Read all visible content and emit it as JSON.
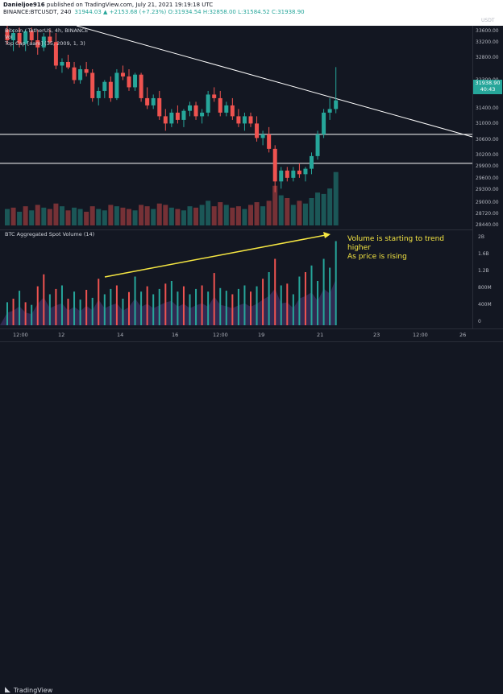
{
  "header": {
    "line1_user": "Danieljoe916",
    "line1_rest": "published on TradingView.com, July 21, 2021 19:19:18 UTC",
    "symbol": "BINANCE:BTCUSDT, 240",
    "ohlc": "31944.03 ▲ +2153.68 (+7.23%) O:31934.54 H:32858.00 L:31584.52 C:31938.90"
  },
  "legend": {
    "line1": "Bitcoin / TetherUS, 4h, BINANCE",
    "line2": "Vol",
    "line3": "Top Cap [aam] (35, 2009, 1, 3)"
  },
  "indicator": {
    "legend": "BTC Aggregated Spot Volume (14)"
  },
  "annotation": {
    "line1": "Volume is starting to trend higher",
    "line2": "As price is rising"
  },
  "price_axis": {
    "currency": "USDT",
    "ticks": [
      "33600.00",
      "33200.00",
      "32800.00",
      "32300.00",
      "31938.90",
      "31400.00",
      "31000.00",
      "30600.00",
      "30200.00",
      "29900.00",
      "29600.00",
      "29300.00",
      "29000.00",
      "28720.00",
      "28440.00"
    ],
    "badge_price": "31938.90",
    "badge_time": "40:43"
  },
  "indicator_axis": {
    "ticks": [
      "2B",
      "1.6B",
      "1.2B",
      "800M",
      "400M",
      "0"
    ]
  },
  "time_axis": {
    "ticks": [
      "12:00",
      "12",
      "14",
      "16",
      "12:00",
      "19",
      "21",
      "23",
      "12:00",
      "26"
    ]
  },
  "footer": {
    "brand": "TradingView"
  },
  "colors": {
    "bull": "#26a69a",
    "bear": "#ef5350",
    "annotation": "#f5e642",
    "trendline": "#ffffff",
    "background": "#131722"
  },
  "chart_data": {
    "type": "candlestick",
    "candles": [
      [
        33900,
        34000,
        33500,
        33600
      ],
      [
        33600,
        33900,
        33300,
        33800
      ],
      [
        33800,
        33950,
        33400,
        33500
      ],
      [
        33500,
        33900,
        33300,
        33850
      ],
      [
        33850,
        33950,
        33500,
        33600
      ],
      [
        33600,
        33900,
        33200,
        33400
      ],
      [
        33400,
        33800,
        33300,
        33700
      ],
      [
        33700,
        33900,
        33500,
        33550
      ],
      [
        33550,
        33800,
        32800,
        32900
      ],
      [
        32900,
        33100,
        32700,
        33000
      ],
      [
        33000,
        33200,
        32800,
        32850
      ],
      [
        32850,
        33000,
        32400,
        32500
      ],
      [
        32500,
        32900,
        32400,
        32800
      ],
      [
        32800,
        33000,
        32600,
        32700
      ],
      [
        32700,
        32800,
        31900,
        32000
      ],
      [
        32000,
        32300,
        31800,
        32200
      ],
      [
        32200,
        32500,
        32000,
        32450
      ],
      [
        32450,
        32600,
        31900,
        32000
      ],
      [
        32000,
        32800,
        31950,
        32700
      ],
      [
        32700,
        32900,
        32500,
        32600
      ],
      [
        32600,
        32800,
        32200,
        32300
      ],
      [
        32300,
        32700,
        32200,
        32650
      ],
      [
        32650,
        32700,
        31900,
        32000
      ],
      [
        32000,
        32300,
        31700,
        31800
      ],
      [
        31800,
        32100,
        31700,
        32000
      ],
      [
        32000,
        32200,
        31400,
        31500
      ],
      [
        31500,
        31700,
        31100,
        31300
      ],
      [
        31300,
        31700,
        31200,
        31600
      ],
      [
        31600,
        31800,
        31300,
        31400
      ],
      [
        31400,
        31700,
        31200,
        31650
      ],
      [
        31650,
        31900,
        31500,
        31800
      ],
      [
        31800,
        31900,
        31400,
        31500
      ],
      [
        31500,
        31700,
        31300,
        31600
      ],
      [
        31600,
        32200,
        31500,
        32100
      ],
      [
        32100,
        32300,
        31900,
        32000
      ],
      [
        32000,
        32200,
        31500,
        31600
      ],
      [
        31600,
        31900,
        31500,
        31800
      ],
      [
        31800,
        32000,
        31400,
        31500
      ],
      [
        31500,
        31700,
        31200,
        31300
      ],
      [
        31300,
        31600,
        31100,
        31500
      ],
      [
        31500,
        31600,
        31200,
        31300
      ],
      [
        31300,
        31500,
        30800,
        30900
      ],
      [
        30900,
        31100,
        30700,
        31000
      ],
      [
        31000,
        31200,
        30500,
        30600
      ],
      [
        30600,
        30700,
        29400,
        29700
      ],
      [
        29700,
        30100,
        29500,
        30000
      ],
      [
        30000,
        30100,
        29700,
        29800
      ],
      [
        29800,
        30100,
        29700,
        30000
      ],
      [
        30000,
        30200,
        29800,
        29900
      ],
      [
        29900,
        30100,
        29700,
        30050
      ],
      [
        30050,
        30500,
        29900,
        30400
      ],
      [
        30400,
        31100,
        30300,
        31000
      ],
      [
        31000,
        31700,
        30900,
        31600
      ],
      [
        31600,
        32000,
        31400,
        31700
      ],
      [
        31700,
        32858,
        31584,
        31939
      ]
    ],
    "volume_up": [
      true,
      false,
      true,
      false,
      true,
      false,
      true,
      false,
      false,
      true,
      false,
      true,
      true,
      false,
      false,
      true,
      true,
      false,
      true,
      false,
      false,
      true,
      false,
      false,
      true,
      false,
      false,
      true,
      false,
      true,
      true,
      false,
      true,
      true,
      false,
      false,
      true,
      false,
      false,
      true,
      false,
      false,
      true,
      false,
      false,
      true,
      false,
      true,
      false,
      true,
      true,
      true,
      true,
      true,
      true
    ],
    "volume": [
      24,
      26,
      20,
      28,
      22,
      30,
      26,
      24,
      32,
      28,
      22,
      26,
      24,
      20,
      28,
      24,
      22,
      30,
      28,
      26,
      24,
      22,
      30,
      28,
      24,
      32,
      30,
      26,
      24,
      22,
      28,
      26,
      30,
      36,
      28,
      34,
      30,
      26,
      28,
      24,
      30,
      34,
      28,
      36,
      58,
      44,
      40,
      30,
      36,
      32,
      40,
      48,
      46,
      54,
      78
    ],
    "spot_volume_M": [
      520,
      600,
      780,
      520,
      460,
      880,
      1150,
      700,
      820,
      900,
      600,
      760,
      580,
      800,
      620,
      1050,
      700,
      820,
      900,
      600,
      750,
      1100,
      760,
      880,
      700,
      820,
      940,
      1000,
      760,
      880,
      700,
      820,
      900,
      760,
      1180,
      840,
      780,
      700,
      820,
      900,
      760,
      880,
      1050,
      1200,
      1500,
      900,
      940,
      700,
      1100,
      1200,
      1350,
      1000,
      1500,
      1300,
      1900
    ],
    "spot_volume_up": [
      true,
      false,
      true,
      false,
      true,
      false,
      false,
      true,
      false,
      true,
      false,
      true,
      true,
      false,
      true,
      false,
      true,
      true,
      false,
      true,
      false,
      true,
      true,
      false,
      true,
      true,
      false,
      true,
      true,
      false,
      true,
      true,
      false,
      true,
      false,
      true,
      true,
      false,
      true,
      true,
      false,
      true,
      false,
      true,
      false,
      true,
      false,
      true,
      true,
      false,
      true,
      true,
      true,
      true,
      true
    ],
    "horizontal_levels": [
      31000,
      30200
    ],
    "trendline": {
      "from": [
        0,
        34000
      ],
      "to": [
        80,
        30600
      ]
    },
    "price_range": [
      28440,
      34000
    ],
    "volume_axis_max": 2000
  }
}
